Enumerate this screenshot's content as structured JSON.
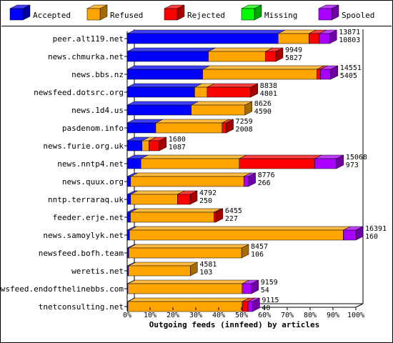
{
  "colors": {
    "accepted": "#0000ff",
    "refused": "#ffa500",
    "rejected": "#ff0000",
    "missing": "#00ff00",
    "spooled": "#aa00ff"
  },
  "legend": [
    {
      "label": "Accepted",
      "color": "#0000ff"
    },
    {
      "label": "Refused",
      "color": "#ffa500"
    },
    {
      "label": "Rejected",
      "color": "#ff0000"
    },
    {
      "label": "Missing",
      "color": "#00ff00"
    },
    {
      "label": "Spooled",
      "color": "#aa00ff"
    }
  ],
  "chart_data": {
    "type": "bar",
    "orientation": "horizontal",
    "stacked": true,
    "xlabel": "Outgoing feeds (innfeed) by articles",
    "xlim": [
      0,
      100
    ],
    "xticks": [
      "0%",
      "10%",
      "20%",
      "30%",
      "40%",
      "50%",
      "60%",
      "70%",
      "80%",
      "90%",
      "100%"
    ],
    "categories": [
      "peer.alt119.net",
      "news.chmurka.net",
      "news.bbs.nz",
      "newsfeed.dotsrc.org",
      "news.1d4.us",
      "pasdenom.info",
      "news.furie.org.uk",
      "news.nntp4.net",
      "news.quux.org",
      "nntp.terraraq.uk",
      "feeder.erje.net",
      "news.samoylyk.net",
      "newsfeed.bofh.team",
      "weretis.net",
      "newsfeed.endofthelinebbs.com",
      "tnetconsulting.net"
    ],
    "offered": [
      13871,
      9949,
      14551,
      8838,
      8626,
      7259,
      1680,
      15068,
      8776,
      4792,
      6455,
      16391,
      8457,
      4581,
      9159,
      9115
    ],
    "accepted_count": [
      10803,
      5827,
      5405,
      4801,
      4590,
      2008,
      1087,
      973,
      266,
      250,
      227,
      160,
      106,
      103,
      54,
      40
    ],
    "series": [
      {
        "name": "Accepted",
        "values": [
          66.0,
          35.5,
          33.0,
          29.5,
          28.0,
          12.5,
          6.5,
          6.0,
          1.5,
          1.5,
          1.4,
          1.0,
          0.7,
          0.6,
          0.3,
          0.3
        ]
      },
      {
        "name": "Refused",
        "values": [
          13.5,
          25.0,
          50.0,
          5.5,
          23.5,
          29.0,
          3.0,
          43.0,
          49.5,
          20.5,
          36.5,
          93.5,
          49.3,
          27.0,
          50.0,
          50.0
        ]
      },
      {
        "name": "Rejected",
        "values": [
          4.5,
          4.5,
          1.5,
          19.0,
          0.0,
          1.8,
          4.5,
          33.0,
          0.0,
          5.5,
          0.8,
          0.0,
          0.0,
          0.0,
          0.0,
          2.5
        ]
      },
      {
        "name": "Missing",
        "values": [
          0,
          0,
          0,
          0,
          0,
          0,
          0,
          0,
          0,
          0,
          0,
          0,
          0,
          0,
          0,
          0
        ]
      },
      {
        "name": "Spooled",
        "values": [
          4.5,
          0.0,
          4.5,
          0.0,
          0.0,
          0.0,
          0.0,
          9.5,
          2.0,
          0.0,
          0.0,
          5.5,
          0.0,
          0.0,
          4.0,
          2.0
        ]
      }
    ],
    "grid": false,
    "legend_position": "top"
  }
}
